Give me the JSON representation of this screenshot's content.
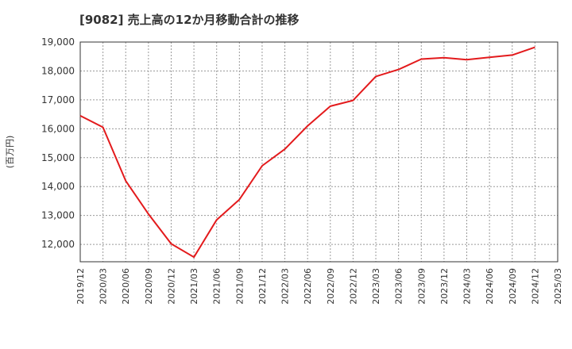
{
  "chart_data": {
    "type": "line",
    "title": "[9082]  売上高の12か月移動合計の推移",
    "xlabel": "",
    "ylabel": "(百万円)",
    "ylim": [
      11400,
      19000
    ],
    "grid": true,
    "y_ticks": [
      12000,
      13000,
      14000,
      15000,
      16000,
      17000,
      18000,
      19000
    ],
    "y_tick_labels": [
      "12,000",
      "13,000",
      "14,000",
      "15,000",
      "16,000",
      "17,000",
      "18,000",
      "19,000"
    ],
    "x_tick_labels": [
      "2019/12",
      "2020/03",
      "2020/06",
      "2020/09",
      "2020/12",
      "2021/03",
      "2021/06",
      "2021/09",
      "2021/12",
      "2022/03",
      "2022/06",
      "2022/09",
      "2022/12",
      "2023/03",
      "2023/06",
      "2023/09",
      "2023/12",
      "2024/03",
      "2024/06",
      "2024/09",
      "2024/12",
      "2025/03"
    ],
    "series": [
      {
        "name": "売上高12か月移動合計",
        "color": "#e31a1c",
        "x_index": [
          0,
          1,
          2,
          3,
          4,
          5,
          6,
          7,
          8,
          9,
          10,
          11,
          12,
          13,
          14,
          15,
          16,
          17,
          18,
          19,
          20
        ],
        "values": [
          16450,
          16050,
          14200,
          13050,
          12020,
          11560,
          12850,
          13550,
          14720,
          15300,
          16100,
          16780,
          16980,
          17810,
          18050,
          18410,
          18460,
          18390,
          18470,
          18550,
          18820
        ]
      }
    ]
  }
}
